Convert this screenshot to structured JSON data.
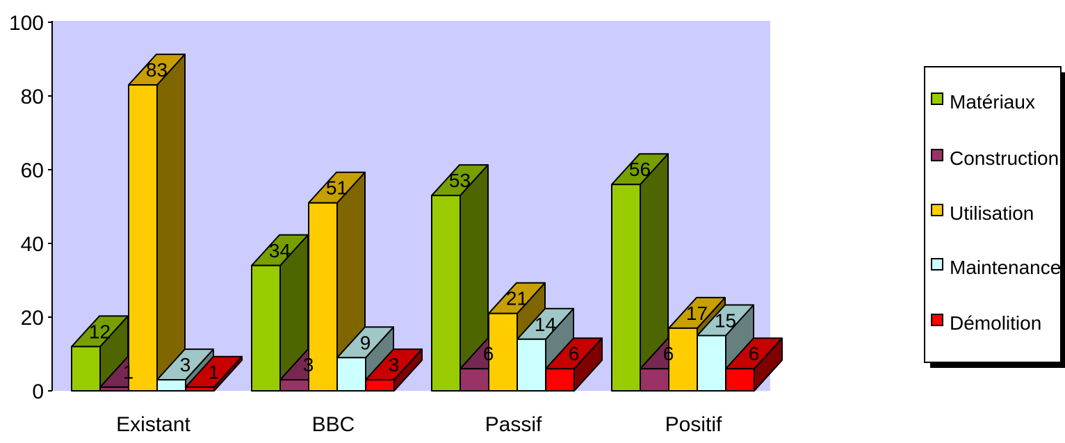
{
  "chart_data": {
    "type": "bar",
    "three_d": true,
    "categories": [
      "Existant",
      "BBC",
      "Passif",
      "Positif"
    ],
    "series": [
      {
        "name": "Matériaux",
        "values": [
          12,
          34,
          53,
          56
        ],
        "color": "#99cc00"
      },
      {
        "name": "Construction",
        "values": [
          1,
          3,
          6,
          6
        ],
        "color": "#993366"
      },
      {
        "name": "Utilisation",
        "values": [
          83,
          51,
          21,
          17
        ],
        "color": "#ffcc00"
      },
      {
        "name": "Maintenance",
        "values": [
          3,
          9,
          14,
          15
        ],
        "color": "#ccffff"
      },
      {
        "name": "Démolition",
        "values": [
          1,
          3,
          6,
          6
        ],
        "color": "#ff0000"
      }
    ],
    "ylim": [
      0,
      100
    ],
    "yticks": [
      0,
      20,
      40,
      60,
      80,
      100
    ],
    "plot_background": "#ccccff",
    "legend_position": "right",
    "grid": false
  }
}
